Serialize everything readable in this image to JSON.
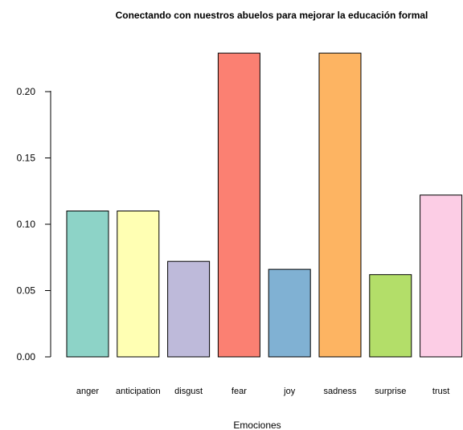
{
  "chart_data": {
    "type": "bar",
    "title": "Conectando con nuestros abuelos para mejorar la educación formal",
    "xlabel": "Emociones",
    "ylabel": "",
    "categories": [
      "anger",
      "anticipation",
      "disgust",
      "fear",
      "joy",
      "sadness",
      "surprise",
      "trust"
    ],
    "values": [
      0.11,
      0.11,
      0.072,
      0.229,
      0.066,
      0.229,
      0.062,
      0.122
    ],
    "colors": [
      "#8DD3C7",
      "#FFFFB3",
      "#BEBADA",
      "#FB8072",
      "#80B1D3",
      "#FDB462",
      "#B3DE69",
      "#FCCDE5"
    ],
    "yticks": [
      "0.00",
      "0.05",
      "0.10",
      "0.15",
      "0.20"
    ],
    "ylim": [
      0,
      0.23
    ],
    "grid": false,
    "legend": "none"
  }
}
